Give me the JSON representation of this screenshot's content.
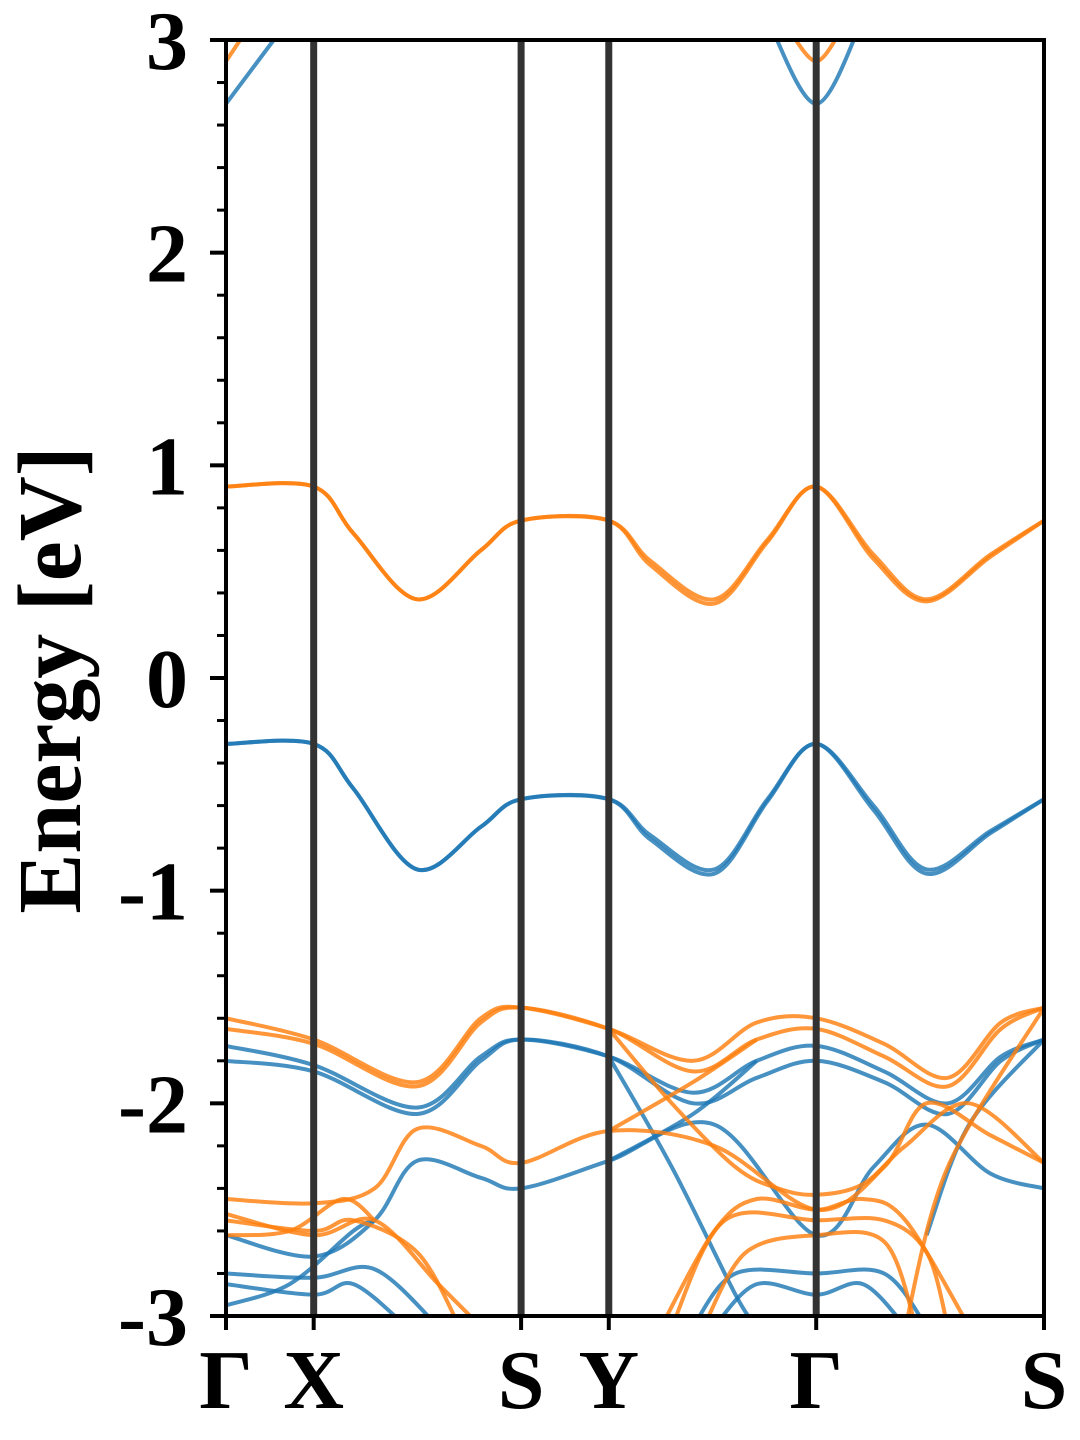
{
  "chart_data": {
    "type": "line",
    "title": "",
    "xlabel": "",
    "ylabel": "Energy [eV]",
    "ylim": [
      -3,
      3
    ],
    "yticks": [
      -3,
      -2,
      -1,
      0,
      1,
      2,
      3
    ],
    "ytick_labels": [
      "-3",
      "-2",
      "-1",
      "0",
      "1",
      "2",
      "3"
    ],
    "y_minor_step": 0.2,
    "xlim": [
      0,
      3.853
    ],
    "kpath": [
      {
        "label": "Γ",
        "x": 0.0
      },
      {
        "label": "X",
        "x": 0.413
      },
      {
        "label": "S",
        "x": 1.39
      },
      {
        "label": "Y",
        "x": 1.803
      },
      {
        "label": "Γ",
        "x": 2.78
      },
      {
        "label": "S",
        "x": 3.853
      }
    ],
    "grid": false,
    "legend": "none",
    "colors": {
      "spin_up": "#1f77b4",
      "spin_down": "#ff7f0e",
      "kpath_line": "#333333"
    },
    "series": [
      {
        "group": "spin_up",
        "points": [
          [
            0,
            -0.31
          ],
          [
            0.413,
            -0.31
          ],
          [
            0.6,
            -0.52
          ],
          [
            0.9,
            -0.9
          ],
          [
            1.2,
            -0.7
          ],
          [
            1.39,
            -0.57
          ],
          [
            1.803,
            -0.57
          ],
          [
            2.0,
            -0.74
          ],
          [
            2.3,
            -0.9
          ],
          [
            2.55,
            -0.57
          ],
          [
            2.78,
            -0.31
          ],
          [
            3.05,
            -0.6
          ],
          [
            3.3,
            -0.9
          ],
          [
            3.6,
            -0.72
          ],
          [
            3.853,
            -0.57
          ]
        ]
      },
      {
        "group": "spin_up",
        "points": [
          [
            0,
            -0.31
          ],
          [
            0.413,
            -0.31
          ],
          [
            0.6,
            -0.52
          ],
          [
            0.9,
            -0.9
          ],
          [
            1.2,
            -0.7
          ],
          [
            1.39,
            -0.57
          ],
          [
            1.803,
            -0.57
          ],
          [
            2.0,
            -0.76
          ],
          [
            2.3,
            -0.92
          ],
          [
            2.55,
            -0.58
          ],
          [
            2.78,
            -0.31
          ],
          [
            3.05,
            -0.62
          ],
          [
            3.3,
            -0.92
          ],
          [
            3.6,
            -0.73
          ],
          [
            3.853,
            -0.57
          ]
        ]
      },
      {
        "group": "spin_down",
        "points": [
          [
            0,
            0.9
          ],
          [
            0.413,
            0.9
          ],
          [
            0.6,
            0.68
          ],
          [
            0.9,
            0.37
          ],
          [
            1.2,
            0.6
          ],
          [
            1.39,
            0.74
          ],
          [
            1.803,
            0.74
          ],
          [
            2.0,
            0.55
          ],
          [
            2.3,
            0.37
          ],
          [
            2.55,
            0.65
          ],
          [
            2.78,
            0.9
          ],
          [
            3.05,
            0.58
          ],
          [
            3.3,
            0.37
          ],
          [
            3.6,
            0.58
          ],
          [
            3.853,
            0.74
          ]
        ]
      },
      {
        "group": "spin_down",
        "points": [
          [
            0,
            0.9
          ],
          [
            0.413,
            0.9
          ],
          [
            0.6,
            0.68
          ],
          [
            0.9,
            0.37
          ],
          [
            1.2,
            0.6
          ],
          [
            1.39,
            0.74
          ],
          [
            1.803,
            0.74
          ],
          [
            2.0,
            0.53
          ],
          [
            2.3,
            0.35
          ],
          [
            2.55,
            0.64
          ],
          [
            2.78,
            0.9
          ],
          [
            3.05,
            0.56
          ],
          [
            3.3,
            0.36
          ],
          [
            3.6,
            0.57
          ],
          [
            3.853,
            0.74
          ]
        ]
      },
      {
        "group": "spin_up",
        "points": [
          [
            0,
            2.7
          ],
          [
            0.3,
            3.1
          ]
        ]
      },
      {
        "group": "spin_up",
        "points": [
          [
            2.55,
            3.1
          ],
          [
            2.78,
            2.7
          ],
          [
            3.0,
            3.1
          ]
        ]
      },
      {
        "group": "spin_down",
        "points": [
          [
            0,
            2.9
          ],
          [
            0.1,
            3.05
          ]
        ]
      },
      {
        "group": "spin_down",
        "points": [
          [
            2.65,
            3.05
          ],
          [
            2.78,
            2.9
          ],
          [
            2.9,
            3.05
          ]
        ]
      },
      {
        "group": "spin_up",
        "points": [
          [
            0,
            -1.73
          ],
          [
            0.413,
            -1.82
          ],
          [
            0.9,
            -2.02
          ],
          [
            1.2,
            -1.78
          ],
          [
            1.39,
            -1.7
          ],
          [
            1.803,
            -1.78
          ],
          [
            2.2,
            -1.95
          ],
          [
            2.5,
            -1.8
          ],
          [
            2.78,
            -1.73
          ],
          [
            3.1,
            -1.85
          ],
          [
            3.4,
            -2.0
          ],
          [
            3.65,
            -1.78
          ],
          [
            3.853,
            -1.7
          ]
        ]
      },
      {
        "group": "spin_up",
        "points": [
          [
            0,
            -1.8
          ],
          [
            0.413,
            -1.85
          ],
          [
            0.9,
            -2.05
          ],
          [
            1.2,
            -1.8
          ],
          [
            1.39,
            -1.7
          ],
          [
            1.803,
            -1.78
          ],
          [
            2.2,
            -2.0
          ],
          [
            2.5,
            -1.88
          ],
          [
            2.78,
            -1.8
          ],
          [
            3.1,
            -1.9
          ],
          [
            3.4,
            -2.05
          ],
          [
            3.65,
            -1.8
          ],
          [
            3.853,
            -1.7
          ]
        ]
      },
      {
        "group": "spin_up",
        "points": [
          [
            1.803,
            -1.78
          ],
          [
            2.1,
            -2.3
          ],
          [
            2.4,
            -2.9
          ],
          [
            2.5,
            -3.05
          ]
        ]
      },
      {
        "group": "spin_up",
        "points": [
          [
            1.803,
            -2.27
          ],
          [
            2.2,
            -2.05
          ],
          [
            2.5,
            -1.8
          ]
        ]
      },
      {
        "group": "spin_up",
        "points": [
          [
            0,
            -2.62
          ],
          [
            0.413,
            -2.72
          ],
          [
            0.7,
            -2.55
          ],
          [
            0.9,
            -2.27
          ],
          [
            1.2,
            -2.35
          ],
          [
            1.39,
            -2.4
          ],
          [
            1.803,
            -2.27
          ],
          [
            2.3,
            -2.1
          ],
          [
            2.78,
            -2.62
          ],
          [
            3.05,
            -2.3
          ],
          [
            3.3,
            -2.1
          ],
          [
            3.6,
            -2.33
          ],
          [
            3.853,
            -2.4
          ]
        ]
      },
      {
        "group": "spin_up",
        "points": [
          [
            3.3,
            -2.62
          ],
          [
            3.5,
            -2.1
          ],
          [
            3.853,
            -1.7
          ]
        ]
      },
      {
        "group": "spin_up",
        "points": [
          [
            0,
            -2.8
          ],
          [
            0.413,
            -2.82
          ],
          [
            0.7,
            -2.78
          ],
          [
            1.0,
            -3.05
          ]
        ]
      },
      {
        "group": "spin_up",
        "points": [
          [
            0,
            -2.85
          ],
          [
            0.413,
            -2.9
          ],
          [
            0.6,
            -2.85
          ],
          [
            0.85,
            -3.05
          ]
        ]
      },
      {
        "group": "spin_up",
        "points": [
          [
            0,
            -2.95
          ],
          [
            0.3,
            -2.85
          ],
          [
            0.6,
            -2.6
          ],
          [
            0.7,
            -2.55
          ]
        ]
      },
      {
        "group": "spin_up",
        "points": [
          [
            2.2,
            -3.05
          ],
          [
            2.4,
            -2.8
          ],
          [
            2.78,
            -2.8
          ],
          [
            3.1,
            -2.8
          ],
          [
            3.3,
            -3.05
          ]
        ]
      },
      {
        "group": "spin_up",
        "points": [
          [
            2.3,
            -3.05
          ],
          [
            2.5,
            -2.85
          ],
          [
            2.78,
            -2.9
          ],
          [
            3.0,
            -2.85
          ],
          [
            3.2,
            -3.05
          ]
        ]
      },
      {
        "group": "spin_down",
        "points": [
          [
            0,
            -1.6
          ],
          [
            0.413,
            -1.7
          ],
          [
            0.9,
            -1.9
          ],
          [
            1.2,
            -1.6
          ],
          [
            1.39,
            -1.55
          ],
          [
            1.803,
            -1.65
          ],
          [
            2.2,
            -1.8
          ],
          [
            2.5,
            -1.62
          ],
          [
            2.78,
            -1.6
          ],
          [
            3.1,
            -1.72
          ],
          [
            3.4,
            -1.88
          ],
          [
            3.65,
            -1.62
          ],
          [
            3.853,
            -1.55
          ]
        ]
      },
      {
        "group": "spin_down",
        "points": [
          [
            0,
            -1.65
          ],
          [
            0.413,
            -1.72
          ],
          [
            0.9,
            -1.92
          ],
          [
            1.2,
            -1.62
          ],
          [
            1.39,
            -1.55
          ],
          [
            1.803,
            -1.65
          ],
          [
            2.2,
            -1.85
          ],
          [
            2.5,
            -1.7
          ],
          [
            2.78,
            -1.65
          ],
          [
            3.1,
            -1.78
          ],
          [
            3.4,
            -1.92
          ],
          [
            3.65,
            -1.65
          ],
          [
            3.853,
            -1.55
          ]
        ]
      },
      {
        "group": "spin_down",
        "points": [
          [
            1.803,
            -1.65
          ],
          [
            2.1,
            -2.0
          ],
          [
            2.4,
            -2.3
          ],
          [
            2.6,
            -2.4
          ],
          [
            2.78,
            -2.43
          ],
          [
            3.0,
            -2.38
          ],
          [
            3.2,
            -2.2
          ],
          [
            3.5,
            -2.0
          ],
          [
            3.853,
            -2.28
          ]
        ]
      },
      {
        "group": "spin_down",
        "points": [
          [
            1.803,
            -2.13
          ],
          [
            2.2,
            -1.9
          ],
          [
            2.5,
            -1.7
          ]
        ]
      },
      {
        "group": "spin_down",
        "points": [
          [
            0,
            -2.45
          ],
          [
            0.413,
            -2.47
          ],
          [
            0.7,
            -2.4
          ],
          [
            0.9,
            -2.12
          ],
          [
            1.2,
            -2.2
          ],
          [
            1.39,
            -2.28
          ],
          [
            1.803,
            -2.13
          ],
          [
            2.3,
            -2.2
          ],
          [
            2.78,
            -2.5
          ],
          [
            3.1,
            -2.3
          ],
          [
            3.3,
            -2.0
          ],
          [
            3.6,
            -2.15
          ],
          [
            3.853,
            -2.28
          ]
        ]
      },
      {
        "group": "spin_down",
        "points": [
          [
            3.2,
            -3.05
          ],
          [
            3.4,
            -2.3
          ],
          [
            3.853,
            -1.55
          ]
        ]
      },
      {
        "group": "spin_down",
        "points": [
          [
            0,
            -2.55
          ],
          [
            0.413,
            -2.6
          ],
          [
            0.6,
            -2.55
          ],
          [
            0.9,
            -2.7
          ],
          [
            1.1,
            -3.05
          ]
        ]
      },
      {
        "group": "spin_down",
        "points": [
          [
            0,
            -2.52
          ],
          [
            0.413,
            -2.62
          ],
          [
            0.7,
            -2.55
          ],
          [
            1.0,
            -2.85
          ],
          [
            1.2,
            -3.05
          ]
        ]
      },
      {
        "group": "spin_down",
        "points": [
          [
            0,
            -2.62
          ],
          [
            0.3,
            -2.6
          ],
          [
            0.55,
            -2.45
          ],
          [
            0.7,
            -2.55
          ]
        ]
      },
      {
        "group": "spin_down",
        "points": [
          [
            2.05,
            -3.05
          ],
          [
            2.3,
            -2.6
          ],
          [
            2.5,
            -2.45
          ],
          [
            2.78,
            -2.5
          ],
          [
            3.0,
            -2.45
          ],
          [
            3.2,
            -2.55
          ],
          [
            3.5,
            -3.05
          ]
        ]
      },
      {
        "group": "spin_down",
        "points": [
          [
            2.1,
            -3.05
          ],
          [
            2.35,
            -2.55
          ],
          [
            2.78,
            -2.55
          ],
          [
            3.1,
            -2.55
          ],
          [
            3.3,
            -2.7
          ],
          [
            3.4,
            -3.05
          ]
        ]
      },
      {
        "group": "spin_down",
        "points": [
          [
            2.25,
            -3.05
          ],
          [
            2.45,
            -2.7
          ],
          [
            2.78,
            -2.62
          ],
          [
            3.1,
            -2.65
          ],
          [
            3.25,
            -3.05
          ]
        ]
      }
    ]
  }
}
